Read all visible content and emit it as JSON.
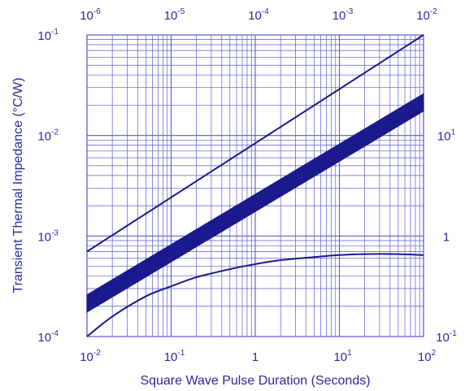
{
  "chart_data": {
    "type": "line",
    "title": "",
    "xlabel": "Square Wave Pulse Duration (Seconds)",
    "ylabel": "Transient Thermal Impedance (°C/W)",
    "x_scale": "log",
    "y_scale": "log",
    "xlim": [
      0.01,
      100
    ],
    "ylim": [
      0.0001,
      0.1
    ],
    "top_xlim": [
      1e-06,
      0.01
    ],
    "right_ylim": [
      0.1,
      100
    ],
    "grid": true,
    "colors": {
      "line": "#1a1a8c",
      "grid": "#5a5ad0",
      "text": "#2a2aa0"
    },
    "ticks": {
      "bottom": [
        {
          "base": "10",
          "exp": "-2"
        },
        {
          "base": "10",
          "exp": "-1"
        },
        {
          "base": "1",
          "exp": ""
        },
        {
          "base": "10",
          "exp": "1"
        },
        {
          "base": "10",
          "exp": "2"
        }
      ],
      "top": [
        {
          "base": "10",
          "exp": "-6"
        },
        {
          "base": "10",
          "exp": "-5"
        },
        {
          "base": "10",
          "exp": "-4"
        },
        {
          "base": "10",
          "exp": "-3"
        },
        {
          "base": "10",
          "exp": "-2"
        }
      ],
      "left": [
        {
          "base": "10",
          "exp": "-1"
        },
        {
          "base": "10",
          "exp": "-2"
        },
        {
          "base": "10",
          "exp": "-3"
        },
        {
          "base": "10",
          "exp": "-4"
        }
      ],
      "right": [
        {
          "base": "10",
          "exp": "1"
        },
        {
          "base": "1",
          "exp": ""
        },
        {
          "base": "10",
          "exp": "-1"
        }
      ]
    },
    "series": [
      {
        "x": [
          0.01,
          100
        ],
        "y": [
          0.0007,
          0.1
        ]
      },
      {
        "type": "band",
        "x": [
          0.01,
          100
        ],
        "y_low": [
          0.000175,
          0.0175
        ],
        "y_high": [
          0.00026,
          0.026
        ]
      },
      {
        "x": [
          0.01,
          0.02,
          0.05,
          0.1,
          0.2,
          0.5,
          1,
          2,
          5,
          10,
          20,
          50,
          100
        ],
        "y": [
          0.0001,
          0.000158,
          0.000251,
          0.000316,
          0.000389,
          0.000468,
          0.000525,
          0.000575,
          0.000617,
          0.000646,
          0.000661,
          0.000661,
          0.000646
        ]
      }
    ]
  }
}
